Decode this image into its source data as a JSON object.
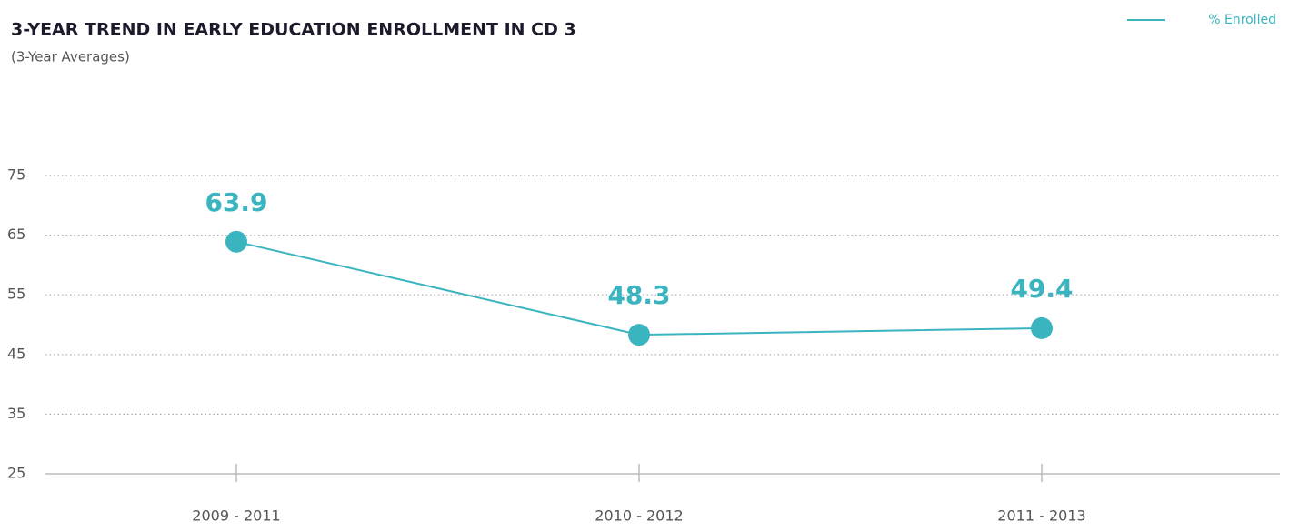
{
  "chart_data": {
    "type": "line",
    "title": "3-YEAR TREND IN EARLY EDUCATION ENROLLMENT IN CD 3",
    "subtitle": "(3-Year Averages)",
    "categories": [
      "2009 - 2011",
      "2010 - 2012",
      "2011 - 2013"
    ],
    "series": [
      {
        "name": "% Enrolled",
        "color": "#3ab5c0",
        "values": [
          63.9,
          48.3,
          49.4
        ]
      }
    ],
    "ylim": [
      25,
      75
    ],
    "yticks": [
      25,
      35,
      45,
      55,
      65,
      75
    ],
    "grid": true,
    "legend": "top-right"
  }
}
